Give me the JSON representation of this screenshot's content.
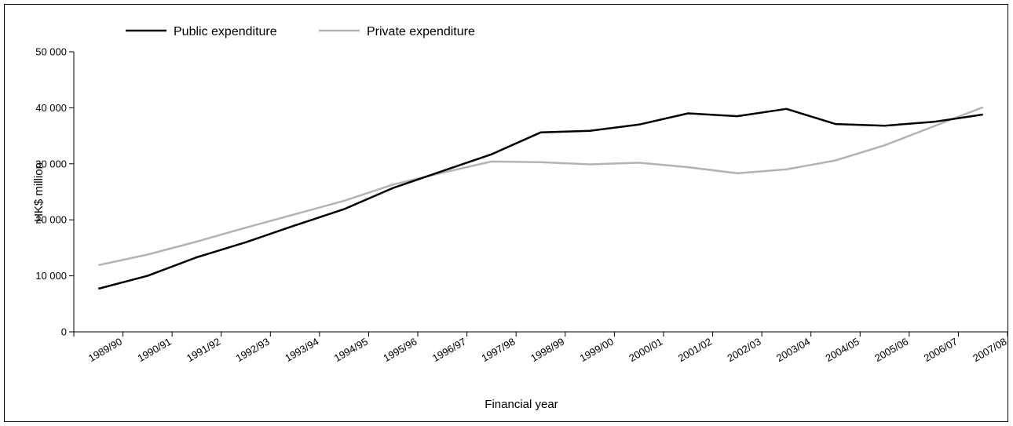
{
  "chart_data": {
    "type": "line",
    "xlabel": "Financial year",
    "ylabel": "HK$ million",
    "ylim": [
      0,
      50000
    ],
    "yticks": [
      0,
      10000,
      20000,
      30000,
      40000,
      50000
    ],
    "ytick_labels": [
      "0",
      "10 000",
      "20 000",
      "30 000",
      "40 000",
      "50 000"
    ],
    "categories": [
      "1989/90",
      "1990/91",
      "1991/92",
      "1992/93",
      "1993/94",
      "1994/95",
      "1995/96",
      "1996/97",
      "1997/98",
      "1998/99",
      "1999/00",
      "2000/01",
      "2001/02",
      "2002/03",
      "2003/04",
      "2004/05",
      "2005/06",
      "2006/07",
      "2007/08"
    ],
    "grid": false,
    "legend_position": "top-left",
    "series": [
      {
        "name": "Public expenditure",
        "color": "#000000",
        "values": [
          7700,
          10000,
          13300,
          16000,
          19000,
          21900,
          25700,
          28700,
          31700,
          35600,
          35900,
          37000,
          39000,
          38500,
          39800,
          37100,
          36800,
          37500,
          38800
        ]
      },
      {
        "name": "Private expenditure",
        "color": "#b3b3b3",
        "values": [
          11900,
          13800,
          16100,
          18600,
          21000,
          23400,
          26300,
          28400,
          30400,
          30300,
          29900,
          30200,
          29400,
          28300,
          29000,
          30600,
          33300,
          36700,
          40100
        ]
      }
    ]
  }
}
